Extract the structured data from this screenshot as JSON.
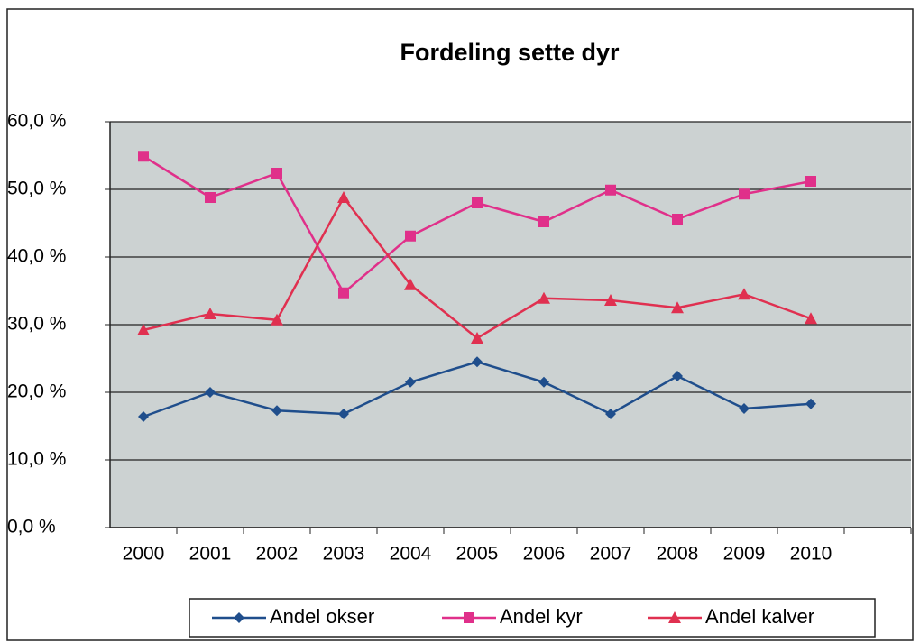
{
  "chart_data": {
    "type": "line",
    "title": "Fordeling sette dyr",
    "categories": [
      "2000",
      "2001",
      "2002",
      "2003",
      "2004",
      "2005",
      "2006",
      "2007",
      "2008",
      "2009",
      "2010",
      null
    ],
    "series": [
      {
        "name": "Andel okser",
        "color": "#1f4e8c",
        "marker": "diamond",
        "values": [
          16.4,
          20.0,
          17.3,
          16.8,
          21.5,
          24.5,
          21.5,
          16.8,
          22.4,
          17.6,
          18.3,
          null
        ]
      },
      {
        "name": "Andel kyr",
        "color": "#e0308a",
        "marker": "square",
        "values": [
          54.9,
          48.8,
          52.4,
          34.7,
          43.1,
          48.0,
          45.2,
          49.9,
          45.6,
          49.3,
          51.2,
          null
        ]
      },
      {
        "name": "Andel kalver",
        "color": "#e03050",
        "marker": "triangle",
        "values": [
          29.2,
          31.6,
          30.7,
          48.8,
          35.9,
          28.0,
          33.9,
          33.6,
          32.5,
          34.5,
          30.9,
          null
        ]
      }
    ],
    "ylim": [
      0,
      60
    ],
    "yticks": [
      {
        "value": 0,
        "label": "0,0 %"
      },
      {
        "value": 10,
        "label": "10,0 %"
      },
      {
        "value": 20,
        "label": "20,0 %"
      },
      {
        "value": 30,
        "label": "30,0 %"
      },
      {
        "value": 40,
        "label": "40,0 %"
      },
      {
        "value": 50,
        "label": "50,0 %"
      },
      {
        "value": 60,
        "label": "60,0 %"
      }
    ],
    "grid": true,
    "legend": "bottom"
  }
}
